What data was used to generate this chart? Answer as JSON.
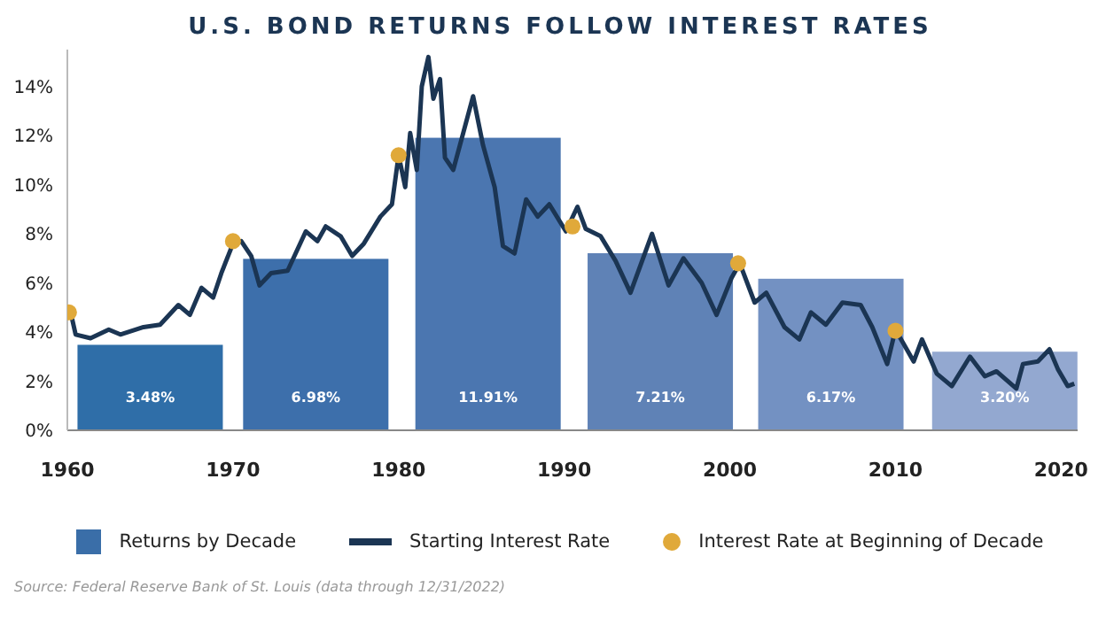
{
  "chart_data": {
    "type": "bar",
    "title": "U.S. BOND RETURNS FOLLOW INTEREST RATES",
    "annotations": [
      "Source: Federal Reserve Bank of St. Louis (data through 12/31/2022)"
    ],
    "xlim": [
      1960,
      2021
    ],
    "xticks": [
      1960,
      1970,
      1980,
      1990,
      2000,
      2010,
      2020
    ],
    "ylim": [
      0,
      15.5
    ],
    "yticks": [
      {
        "value": 0,
        "label": "0%"
      },
      {
        "value": 2,
        "label": "2%"
      },
      {
        "value": 4,
        "label": "4%"
      },
      {
        "value": 6,
        "label": "6%"
      },
      {
        "value": 8,
        "label": "8%"
      },
      {
        "value": 10,
        "label": "10%"
      },
      {
        "value": 12,
        "label": "12%"
      },
      {
        "value": 14,
        "label": "14%"
      }
    ],
    "grid": false,
    "legend": "bottom",
    "series": [
      {
        "name": "Returns by Decade",
        "color": "#3a6ea8",
        "x": [
          1965,
          1975,
          1985.4,
          1995.8,
          2006.1,
          2016.6
        ],
        "values": [
          3.48,
          6.98,
          11.91,
          7.21,
          6.17,
          3.2
        ],
        "value_labels": [
          "3.48%",
          "6.98%",
          "11.91%",
          "7.21%",
          "6.17%",
          "3.20%"
        ],
        "colors": [
          "#2f6ea8",
          "#3d6fab",
          "#4b76b0",
          "#5f82b6",
          "#7391c2",
          "#93a8d0"
        ]
      },
      {
        "name": "Starting Interest Rate",
        "type": "line",
        "color": "#1b3553",
        "marker": "none",
        "x": [
          1960.2,
          1960.5,
          1961.4,
          1962.5,
          1963.2,
          1964.6,
          1965.6,
          1966.7,
          1967.4,
          1968.1,
          1968.8,
          1969.3,
          1970,
          1970.5,
          1971.1,
          1971.6,
          1972.3,
          1973.3,
          1974.4,
          1975.1,
          1975.6,
          1976.5,
          1977.2,
          1977.9,
          1978.9,
          1979.6,
          1980,
          1980.4,
          1980.7,
          1981.1,
          1981.4,
          1981.8,
          1982.1,
          1982.5,
          1982.8,
          1983.3,
          1983.9,
          1984.5,
          1985.1,
          1985.8,
          1986.3,
          1987,
          1987.7,
          1988.4,
          1989.1,
          1990.1,
          1990.8,
          1991.3,
          1992.2,
          1993.1,
          1994,
          1995.3,
          1996.3,
          1997.2,
          1998.3,
          1999.2,
          2000.1,
          2000.6,
          2001.5,
          2002.2,
          2003.3,
          2004.2,
          2004.9,
          2005.8,
          2006.8,
          2007.9,
          2008.6,
          2009.5,
          2010,
          2011.1,
          2011.6,
          2012.5,
          2013.4,
          2014.5,
          2015.4,
          2016.1,
          2017.3,
          2017.7,
          2018.6,
          2019.3,
          2019.8,
          2020.4,
          2020.8
        ],
        "values": [
          4.8,
          3.9,
          3.75,
          4.1,
          3.9,
          4.2,
          4.3,
          5.1,
          4.7,
          5.8,
          5.4,
          6.4,
          7.6,
          7.7,
          7.1,
          5.9,
          6.4,
          6.5,
          8.1,
          7.7,
          8.3,
          7.9,
          7.1,
          7.6,
          8.7,
          9.2,
          11.2,
          9.9,
          12.1,
          10.6,
          14,
          15.2,
          13.5,
          14.3,
          11.1,
          10.6,
          12.1,
          13.6,
          11.6,
          9.9,
          7.5,
          7.2,
          9.4,
          8.7,
          9.2,
          8.1,
          9.1,
          8.2,
          7.9,
          6.9,
          5.6,
          8,
          5.9,
          7,
          6,
          4.7,
          6.2,
          6.8,
          5.2,
          5.6,
          4.2,
          3.7,
          4.8,
          4.3,
          5.2,
          5.1,
          4.2,
          2.7,
          4.1,
          2.8,
          3.7,
          2.3,
          1.8,
          3,
          2.2,
          2.4,
          1.7,
          2.7,
          2.8,
          3.3,
          2.5,
          1.8,
          1.9
        ]
      },
      {
        "name": "Interest Rate at Beginning of Decade",
        "type": "scatter",
        "color": "#e0a93a",
        "marker": "circle",
        "x": [
          1960.1,
          1970,
          1980,
          1990.5,
          2000.5,
          2010
        ],
        "values": [
          4.8,
          7.7,
          11.2,
          8.3,
          6.8,
          4.05
        ]
      }
    ]
  }
}
